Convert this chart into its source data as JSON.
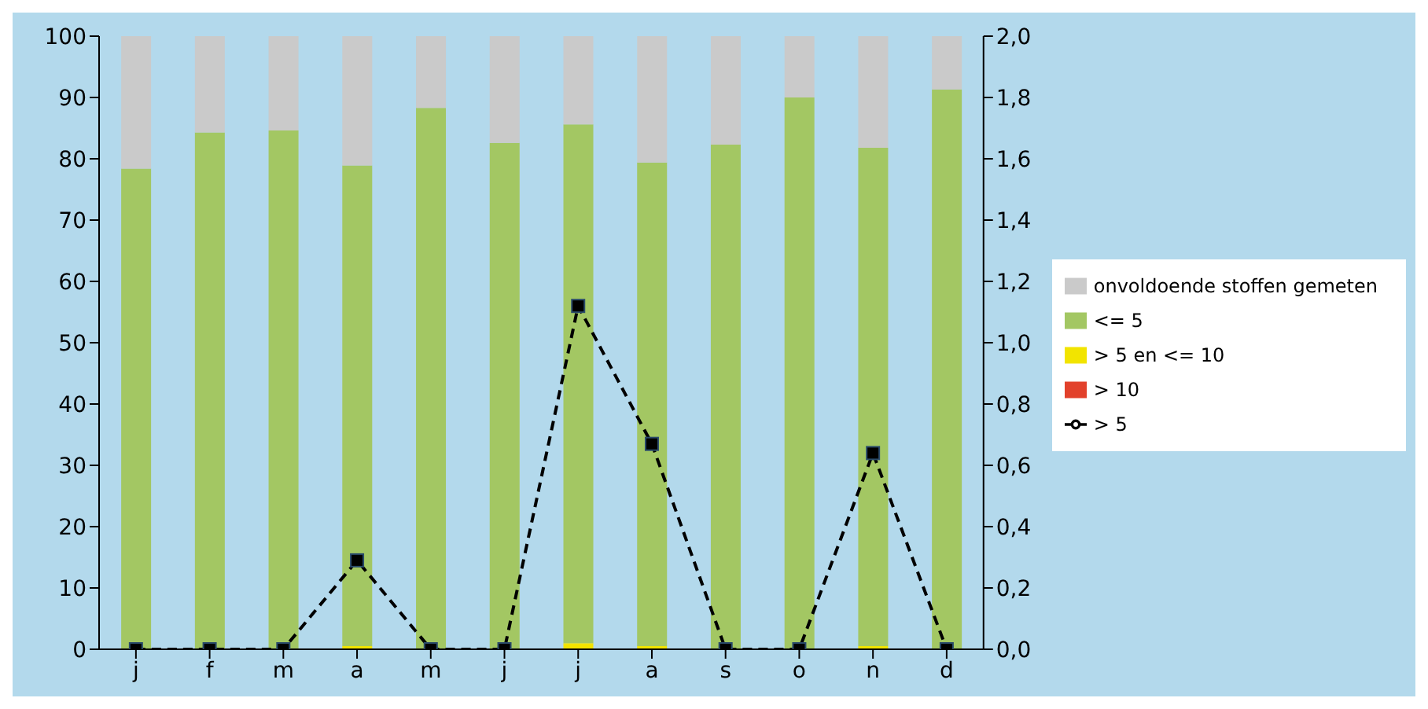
{
  "chart_data": {
    "type": "bar",
    "stacked": true,
    "categories": [
      "j",
      "f",
      "m",
      "a",
      "m",
      "j",
      "j",
      "a",
      "s",
      "o",
      "n",
      "d"
    ],
    "series": [
      {
        "name": "> 10",
        "color": "#e2412b",
        "values": [
          0,
          0,
          0,
          0,
          0,
          0,
          0,
          0,
          0,
          0,
          0,
          0
        ]
      },
      {
        "name": "> 5 en <= 10",
        "color": "#f2e400",
        "values": [
          0,
          0,
          0,
          0.5,
          0,
          0,
          1.0,
          0.5,
          0,
          0,
          0.5,
          0
        ]
      },
      {
        "name": "<= 5",
        "color": "#a3c763",
        "values": [
          78.4,
          84.3,
          84.6,
          78.4,
          88.3,
          82.6,
          84.6,
          78.9,
          82.3,
          90.0,
          81.3,
          91.3
        ]
      },
      {
        "name": "onvoldoende stoffen gemeten",
        "color": "#cacaca",
        "values": [
          21.6,
          15.7,
          15.4,
          21.1,
          11.7,
          17.4,
          14.4,
          20.6,
          17.7,
          10.0,
          18.2,
          8.7
        ]
      },
      {
        "name": "> 5",
        "type": "line",
        "axis": "y2",
        "color": "#000000",
        "line_style": "dashed",
        "marker": "square",
        "values": [
          0,
          0,
          0,
          0.29,
          0,
          0,
          1.12,
          0.67,
          0,
          0,
          0.64,
          0
        ]
      }
    ],
    "ylim": [
      0,
      100
    ],
    "yticks": [
      0,
      10,
      20,
      30,
      40,
      50,
      60,
      70,
      80,
      90,
      100
    ],
    "y2lim": [
      0,
      2
    ],
    "y2ticks": [
      {
        "value": 0,
        "label": "0,0"
      },
      {
        "value": 0.2,
        "label": "0,2"
      },
      {
        "value": 0.4,
        "label": "0,4"
      },
      {
        "value": 0.6,
        "label": "0,6"
      },
      {
        "value": 0.8,
        "label": "0,8"
      },
      {
        "value": 1.0,
        "label": "1,0"
      },
      {
        "value": 1.2,
        "label": "1,2"
      },
      {
        "value": 1.4,
        "label": "1,4"
      },
      {
        "value": 1.6,
        "label": "1,6"
      },
      {
        "value": 1.8,
        "label": "1,8"
      },
      {
        "value": 2.0,
        "label": "2,0"
      }
    ],
    "grid": false,
    "legend": "right"
  }
}
